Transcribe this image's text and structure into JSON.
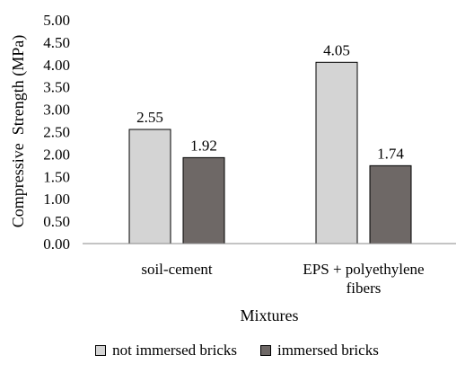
{
  "chart_data": {
    "type": "bar",
    "categories": [
      [
        "soil-cement"
      ],
      [
        "EPS + polyethylene",
        "fibers"
      ]
    ],
    "series": [
      {
        "name": "not immersed bricks",
        "color": "#d4d4d4",
        "values": [
          2.55,
          4.05
        ]
      },
      {
        "name": "immersed bricks",
        "color": "#6e6866",
        "values": [
          1.92,
          1.74
        ]
      }
    ],
    "data_labels": [
      [
        "2.55",
        "4.05"
      ],
      [
        "1.92",
        "1.74"
      ]
    ],
    "ylim": [
      0,
      5
    ],
    "y_ticks": [
      "0.00",
      "0.50",
      "1.00",
      "1.50",
      "2.00",
      "2.50",
      "3.00",
      "3.50",
      "4.00",
      "4.50",
      "5.00"
    ],
    "xlabel": "Mixtures",
    "ylabel": "Compressive  Strength (MPa)",
    "legend_position": "bottom",
    "grid": false
  }
}
